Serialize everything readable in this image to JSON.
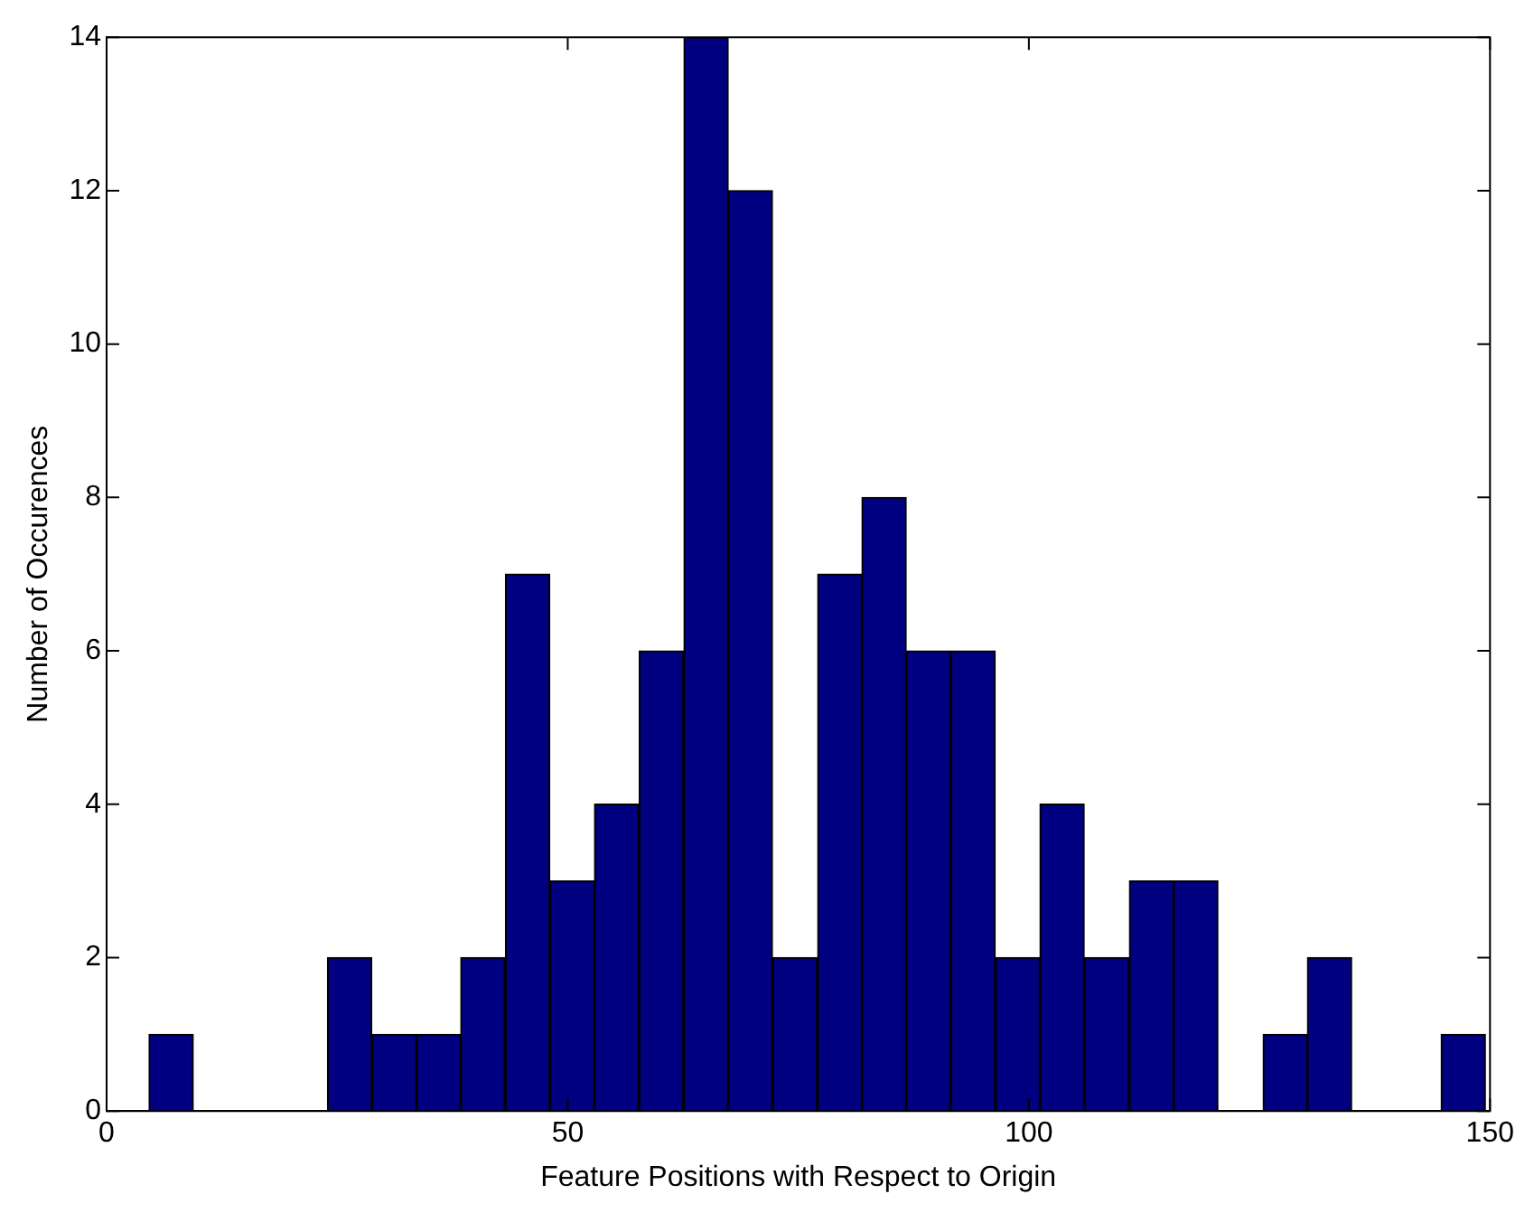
{
  "chart_data": {
    "type": "histogram",
    "xlabel": "Feature Positions with Respect to Origin",
    "ylabel": "Number of Occurences",
    "bins": [
      4.6,
      9.4,
      14.3,
      19.1,
      23.9,
      28.8,
      33.6,
      38.4,
      43.2,
      48.1,
      52.9,
      57.7,
      62.6,
      67.4,
      72.2,
      77.1,
      81.9,
      86.7,
      91.5,
      96.4,
      101.2,
      106.0,
      110.9,
      115.7,
      120.5,
      125.4,
      130.2,
      135.0,
      139.8,
      144.7,
      149.5
    ],
    "values": [
      1,
      0,
      0,
      0,
      2,
      1,
      1,
      2,
      7,
      3,
      4,
      6,
      14,
      12,
      2,
      7,
      8,
      6,
      6,
      2,
      4,
      2,
      3,
      3,
      0,
      1,
      2,
      0,
      0,
      1
    ],
    "color": "#000080",
    "xlim": [
      0,
      150
    ],
    "xticks": [
      0,
      50,
      100,
      150
    ],
    "ylim": [
      0,
      14
    ],
    "yticks": [
      0,
      2,
      4,
      6,
      8,
      10,
      12,
      14
    ],
    "grid": false
  }
}
